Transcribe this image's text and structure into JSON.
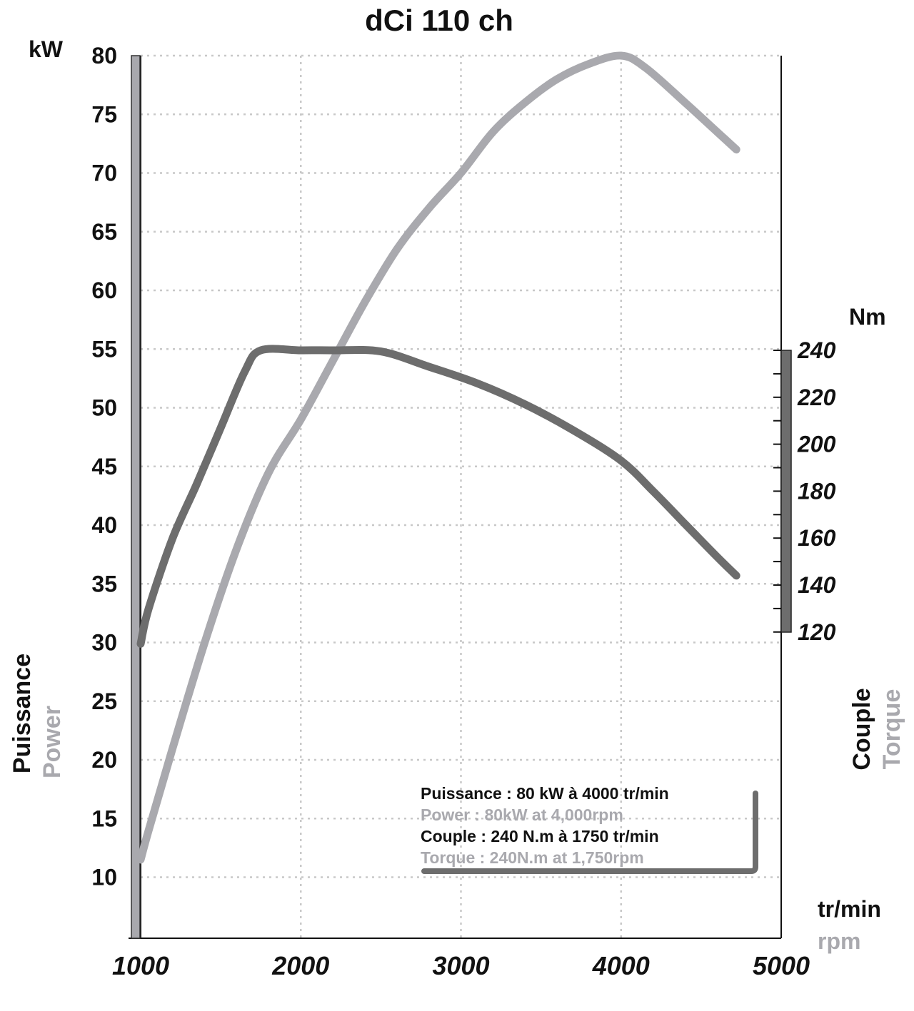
{
  "chart_data": {
    "type": "line",
    "title": "dCi 110 ch",
    "x": {
      "unit_primary": "tr/min",
      "unit_secondary": "rpm",
      "range": [
        1000,
        5000
      ],
      "ticks": [
        "1000",
        "2000",
        "3000",
        "4000",
        "5000"
      ]
    },
    "y_left": {
      "unit": "kW",
      "label_primary": "Puissance",
      "label_secondary": "Power",
      "range": [
        5,
        80
      ],
      "ticks": [
        "80",
        "75",
        "70",
        "65",
        "60",
        "55",
        "50",
        "45",
        "40",
        "35",
        "30",
        "25",
        "20",
        "15",
        "10"
      ]
    },
    "y_right": {
      "unit": "Nm",
      "label_primary": "Couple",
      "label_secondary": "Torque",
      "range": [
        120,
        240
      ],
      "ticks": [
        "240",
        "220",
        "200",
        "180",
        "160",
        "140",
        "120"
      ]
    },
    "grid": true,
    "series": [
      {
        "name": "Power",
        "axis": "left",
        "color": "#a9a9ae",
        "points": [
          [
            1000,
            11.5
          ],
          [
            1050,
            14
          ],
          [
            1200,
            21
          ],
          [
            1400,
            30
          ],
          [
            1600,
            38
          ],
          [
            1800,
            44.5
          ],
          [
            2000,
            49
          ],
          [
            2200,
            54
          ],
          [
            2400,
            59
          ],
          [
            2600,
            63.5
          ],
          [
            2800,
            67
          ],
          [
            3000,
            70
          ],
          [
            3200,
            73.5
          ],
          [
            3400,
            76
          ],
          [
            3600,
            78
          ],
          [
            3800,
            79.3
          ],
          [
            4000,
            80
          ],
          [
            4150,
            79
          ],
          [
            4400,
            76
          ],
          [
            4600,
            73.5
          ],
          [
            4720,
            72
          ]
        ]
      },
      {
        "name": "Torque",
        "axis": "right",
        "color": "#6d6d6d",
        "points": [
          [
            1000,
            115
          ],
          [
            1050,
            130
          ],
          [
            1200,
            160
          ],
          [
            1350,
            183
          ],
          [
            1500,
            207
          ],
          [
            1650,
            231
          ],
          [
            1750,
            240
          ],
          [
            2000,
            240
          ],
          [
            2200,
            240
          ],
          [
            2500,
            239.5
          ],
          [
            2800,
            233
          ],
          [
            3100,
            226
          ],
          [
            3400,
            217
          ],
          [
            3700,
            206
          ],
          [
            4000,
            193
          ],
          [
            4200,
            180
          ],
          [
            4400,
            166
          ],
          [
            4600,
            152
          ],
          [
            4720,
            144
          ]
        ]
      }
    ]
  },
  "info_box": {
    "line1": "Puissance : 80 kW à 4000 tr/min",
    "line2": "Power : 80kW at 4,000rpm",
    "line3": "Couple : 240 N.m à 1750 tr/min",
    "line4": "Torque : 240N.m at 1,750rpm"
  },
  "colors": {
    "text_dark": "#111111",
    "text_light": "#a9a9ae",
    "grid": "#c8c8c8",
    "axis_bar_left": "#a9a9ae",
    "axis_bar_right": "#6d6d6d"
  }
}
